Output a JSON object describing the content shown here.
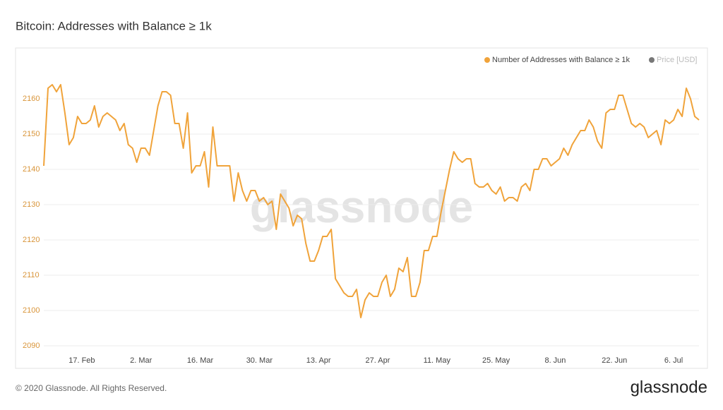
{
  "page": {
    "title": "Bitcoin: Addresses with Balance ≥ 1k",
    "footer": "© 2020 Glassnode. All Rights Reserved.",
    "logo": "glassnode",
    "watermark": "glassnode"
  },
  "chart_data": {
    "type": "line",
    "categories": [
      null,
      null,
      null,
      null,
      null,
      null,
      null,
      null,
      null,
      "17. Feb",
      null,
      null,
      null,
      null,
      null,
      null,
      null,
      null,
      null,
      null,
      null,
      null,
      null,
      "2. Mar",
      null,
      null,
      null,
      null,
      null,
      null,
      null,
      null,
      null,
      null,
      null,
      null,
      null,
      "16. Mar",
      null,
      null,
      null,
      null,
      null,
      null,
      null,
      null,
      null,
      null,
      null,
      null,
      null,
      "30. Mar",
      null,
      null,
      null,
      null,
      null,
      null,
      null,
      null,
      null,
      null,
      null,
      null,
      null,
      "13. Apr",
      null,
      null,
      null,
      null,
      null,
      null,
      null,
      null,
      null,
      null,
      null,
      null,
      null,
      "27. Apr",
      null,
      null,
      null,
      null,
      null,
      null,
      null,
      null,
      null,
      null,
      null,
      null,
      null,
      "11. May",
      null,
      null,
      null,
      null,
      null,
      null,
      null,
      null,
      null,
      null,
      null,
      null,
      null,
      "25. May",
      null,
      null,
      null,
      null,
      null,
      null,
      null,
      null,
      null,
      null,
      null,
      null,
      null,
      "8. Jun",
      null,
      null,
      null,
      null,
      null,
      null,
      null,
      null,
      null,
      null,
      null,
      null,
      null,
      "22. Jun",
      null,
      null,
      null,
      null,
      null,
      null,
      null,
      null,
      null,
      null,
      null,
      null,
      null,
      "6. Jul",
      null,
      null,
      null,
      null,
      null,
      null
    ],
    "series": [
      {
        "name": "Number of Addresses with Balance ≥ 1k",
        "color": "#f0a33a",
        "values": [
          2141,
          2163,
          2164,
          2162,
          2164,
          2156,
          2147,
          2149,
          2155,
          2153,
          2153,
          2154,
          2158,
          2152,
          2155,
          2156,
          2155,
          2154,
          2151,
          2153,
          2147,
          2146,
          2142,
          2146,
          2146,
          2144,
          2151,
          2158,
          2162,
          2162,
          2161,
          2153,
          2153,
          2146,
          2156,
          2139,
          2141,
          2141,
          2145,
          2135,
          2152,
          2141,
          2141,
          2141,
          2141,
          2131,
          2139,
          2134,
          2131,
          2134,
          2134,
          2131,
          2132,
          2130,
          2131,
          2123,
          2133,
          2131,
          2129,
          2124,
          2127,
          2126,
          2119,
          2114,
          2114,
          2117,
          2121,
          2121,
          2123,
          2109,
          2107,
          2105,
          2104,
          2104,
          2106,
          2098,
          2103,
          2105,
          2104,
          2104,
          2108,
          2110,
          2104,
          2106,
          2112,
          2111,
          2115,
          2104,
          2104,
          2108,
          2117,
          2117,
          2121,
          2121,
          2128,
          2134,
          2140,
          2145,
          2143,
          2142,
          2143,
          2143,
          2136,
          2135,
          2135,
          2136,
          2134,
          2133,
          2135,
          2131,
          2132,
          2132,
          2131,
          2135,
          2136,
          2134,
          2140,
          2140,
          2143,
          2143,
          2141,
          2142,
          2143,
          2146,
          2144,
          2147,
          2149,
          2151,
          2151,
          2154,
          2152,
          2148,
          2146,
          2156,
          2157,
          2157,
          2161,
          2161,
          2157,
          2153,
          2152,
          2153,
          2152,
          2149,
          2150,
          2151,
          2147,
          2154,
          2153,
          2154,
          2157,
          2155,
          2163,
          2160,
          2155,
          2154
        ]
      }
    ],
    "inactive_legend": {
      "name": "Price [USD]",
      "color": "#777777"
    },
    "ylim": [
      2088,
      2169
    ],
    "yticks": [
      2090,
      2100,
      2110,
      2120,
      2130,
      2140,
      2150,
      2160
    ],
    "grid": true
  }
}
